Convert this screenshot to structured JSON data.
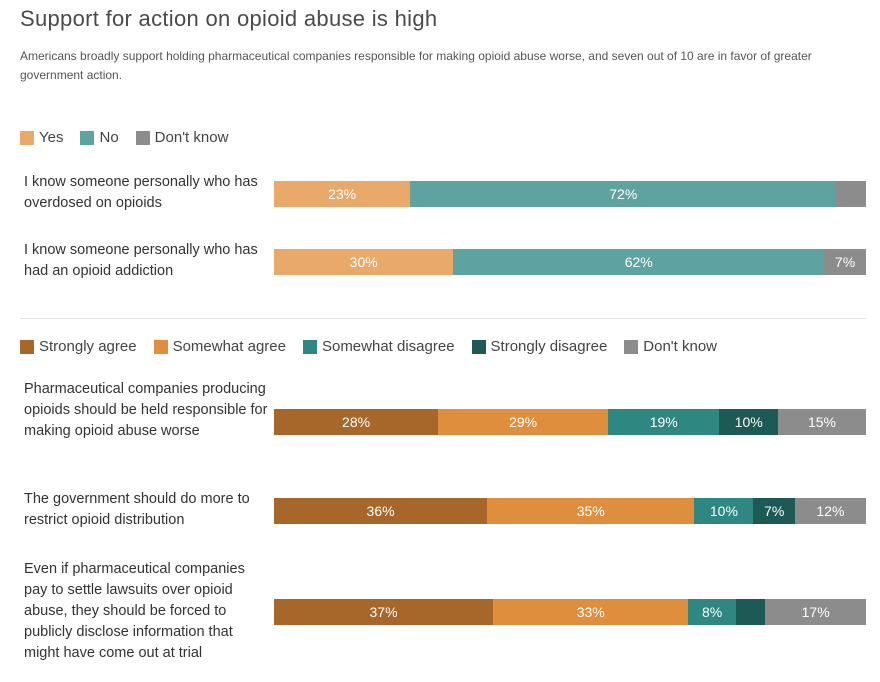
{
  "title": "Support for action on opioid abuse is high",
  "subtitle": "Americans broadly support holding pharmaceutical companies responsible for making opioid abuse worse, and seven out of 10 are in favor of greater government action.",
  "chart_data": [
    {
      "type": "bar",
      "orientation": "horizontal",
      "stacked": true,
      "legend_position": "top-left",
      "series_names": [
        "Yes",
        "No",
        "Don't know"
      ],
      "colors": [
        "#E8A96A",
        "#5FA3A1",
        "#8C8C8C"
      ],
      "rows": [
        {
          "label": "I know someone personally who has overdosed on opioids",
          "values": [
            23,
            72,
            5
          ],
          "value_labels": [
            "23%",
            "72%",
            ""
          ]
        },
        {
          "label": "I know someone personally who has had an opioid addiction",
          "values": [
            30,
            62,
            7
          ],
          "value_labels": [
            "30%",
            "62%",
            "7%"
          ]
        }
      ]
    },
    {
      "type": "bar",
      "orientation": "horizontal",
      "stacked": true,
      "legend_position": "top-left",
      "series_names": [
        "Strongly agree",
        "Somewhat agree",
        "Somewhat disagree",
        "Strongly disagree",
        "Don't know"
      ],
      "colors": [
        "#A8672A",
        "#DE8E3D",
        "#2E8780",
        "#1E5A55",
        "#8C8C8C"
      ],
      "rows": [
        {
          "label": "Pharmaceutical companies producing opioids should be held responsible for making opioid abuse worse",
          "values": [
            28,
            29,
            19,
            10,
            15
          ],
          "value_labels": [
            "28%",
            "29%",
            "19%",
            "10%",
            "15%"
          ]
        },
        {
          "label": "The government should do more to restrict opioid distribution",
          "values": [
            36,
            35,
            10,
            7,
            12
          ],
          "value_labels": [
            "36%",
            "35%",
            "10%",
            "7%",
            "12%"
          ]
        },
        {
          "label": "Even if pharmaceutical companies pay to settle lawsuits over opioid abuse, they should be forced to publicly disclose information that might have come out at trial",
          "values": [
            37,
            33,
            8,
            5,
            17
          ],
          "value_labels": [
            "37%",
            "33%",
            "8%",
            "",
            "17%"
          ]
        }
      ]
    }
  ]
}
